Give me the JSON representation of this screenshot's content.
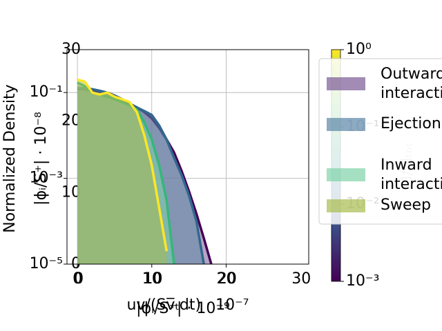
{
  "chart_data": {
    "type": "area",
    "ylabel": "Normalized Density",
    "y2label": "|ϕᵢ/S⁺| · 10⁻⁸",
    "xlabel": "uv/(Sv̅ₜdt) · 10⁻⁷",
    "x2label": "|ϕᵢ/S⁺| · 10⁻⁹",
    "x": [
      0,
      1,
      2,
      3,
      4,
      5,
      6,
      7,
      8,
      9,
      10,
      11,
      12,
      13,
      14,
      15,
      16,
      17,
      18
    ],
    "series": [
      {
        "name": "Outward\ninteraction",
        "color": "#440154",
        "fill": "#7a5a94",
        "values": [
          0.12,
          0.12,
          0.11,
          0.105,
          0.1,
          0.085,
          0.07,
          0.055,
          0.045,
          0.035,
          0.025,
          0.015,
          0.008,
          0.004,
          0.0015,
          0.0005,
          0.00015,
          4e-05,
          1e-05
        ]
      },
      {
        "name": "Ejection",
        "color": "#31688e",
        "fill": "#5b86a6",
        "values": [
          0.13,
          0.125,
          0.12,
          0.11,
          0.1,
          0.085,
          0.07,
          0.055,
          0.045,
          0.037,
          0.03,
          0.017,
          0.008,
          0.003,
          0.0012,
          0.0004,
          0.0001,
          1e-05,
          null
        ]
      },
      {
        "name": "Inward\ninteraction",
        "color": "#35b779",
        "fill": "#7fd3a8",
        "values": [
          0.17,
          0.14,
          0.1,
          0.09,
          0.08,
          0.07,
          0.06,
          0.05,
          0.04,
          0.02,
          0.008,
          0.002,
          0.0003,
          1e-05,
          null,
          null,
          null,
          null,
          null
        ]
      },
      {
        "name": "Sweep",
        "color": "#fde725",
        "fill": "#a8bc4e",
        "values": [
          0.2,
          0.18,
          0.1,
          0.09,
          0.1,
          0.08,
          0.07,
          0.06,
          0.035,
          0.01,
          0.002,
          0.0002,
          2e-05,
          null,
          null,
          null,
          null,
          null,
          null
        ]
      }
    ],
    "xlim": [
      -1.4,
      31.1
    ],
    "xticks": [
      0,
      10,
      20
    ],
    "x2lim": [
      -1.6,
      31
    ],
    "x2ticks": [
      0,
      10,
      20,
      30
    ],
    "ylim": [
      1e-05,
      1
    ],
    "log_y": true,
    "yticks": [
      {
        "value": 0.1,
        "label": "10⁻¹"
      },
      {
        "value": 0.001,
        "label": "10⁻³"
      },
      {
        "value": 1e-05,
        "label": "10⁻⁵"
      }
    ],
    "y2lim": [
      0,
      30
    ],
    "y2ticks": [
      0,
      10,
      20,
      30
    ],
    "grid": true,
    "colorbar": {
      "label": "M/Mₜₒₜ",
      "lim": [
        0.001,
        1
      ],
      "colormap": [
        "#440154",
        "#3b528b",
        "#21918c",
        "#5ec962",
        "#fde725"
      ],
      "ticks": [
        {
          "value": 1,
          "label": "10⁰"
        },
        {
          "value": 0.1,
          "label": "10⁻¹"
        },
        {
          "value": 0.01,
          "label": "10⁻²"
        },
        {
          "value": 0.001,
          "label": "10⁻³"
        }
      ]
    },
    "legend": "upper right"
  }
}
